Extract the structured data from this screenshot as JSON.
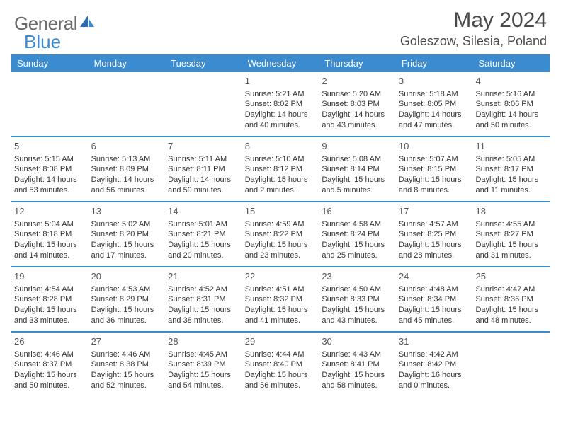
{
  "logo": {
    "word1": "General",
    "word2": "Blue"
  },
  "title": "May 2024",
  "location": "Goleszow, Silesia, Poland",
  "colors": {
    "accent": "#3b8bd0",
    "text": "#353535",
    "logo_gray": "#6a6a6a",
    "page_bg": "#ffffff"
  },
  "typography": {
    "title_fontsize": 30,
    "location_fontsize": 18,
    "dow_fontsize": 13,
    "daynum_fontsize": 13,
    "body_fontsize": 11
  },
  "dow": [
    "Sunday",
    "Monday",
    "Tuesday",
    "Wednesday",
    "Thursday",
    "Friday",
    "Saturday"
  ],
  "weeks": [
    [
      null,
      null,
      null,
      {
        "n": "1",
        "sr": "Sunrise: 5:21 AM",
        "ss": "Sunset: 8:02 PM",
        "dl": "Daylight: 14 hours and 40 minutes."
      },
      {
        "n": "2",
        "sr": "Sunrise: 5:20 AM",
        "ss": "Sunset: 8:03 PM",
        "dl": "Daylight: 14 hours and 43 minutes."
      },
      {
        "n": "3",
        "sr": "Sunrise: 5:18 AM",
        "ss": "Sunset: 8:05 PM",
        "dl": "Daylight: 14 hours and 47 minutes."
      },
      {
        "n": "4",
        "sr": "Sunrise: 5:16 AM",
        "ss": "Sunset: 8:06 PM",
        "dl": "Daylight: 14 hours and 50 minutes."
      }
    ],
    [
      {
        "n": "5",
        "sr": "Sunrise: 5:15 AM",
        "ss": "Sunset: 8:08 PM",
        "dl": "Daylight: 14 hours and 53 minutes."
      },
      {
        "n": "6",
        "sr": "Sunrise: 5:13 AM",
        "ss": "Sunset: 8:09 PM",
        "dl": "Daylight: 14 hours and 56 minutes."
      },
      {
        "n": "7",
        "sr": "Sunrise: 5:11 AM",
        "ss": "Sunset: 8:11 PM",
        "dl": "Daylight: 14 hours and 59 minutes."
      },
      {
        "n": "8",
        "sr": "Sunrise: 5:10 AM",
        "ss": "Sunset: 8:12 PM",
        "dl": "Daylight: 15 hours and 2 minutes."
      },
      {
        "n": "9",
        "sr": "Sunrise: 5:08 AM",
        "ss": "Sunset: 8:14 PM",
        "dl": "Daylight: 15 hours and 5 minutes."
      },
      {
        "n": "10",
        "sr": "Sunrise: 5:07 AM",
        "ss": "Sunset: 8:15 PM",
        "dl": "Daylight: 15 hours and 8 minutes."
      },
      {
        "n": "11",
        "sr": "Sunrise: 5:05 AM",
        "ss": "Sunset: 8:17 PM",
        "dl": "Daylight: 15 hours and 11 minutes."
      }
    ],
    [
      {
        "n": "12",
        "sr": "Sunrise: 5:04 AM",
        "ss": "Sunset: 8:18 PM",
        "dl": "Daylight: 15 hours and 14 minutes."
      },
      {
        "n": "13",
        "sr": "Sunrise: 5:02 AM",
        "ss": "Sunset: 8:20 PM",
        "dl": "Daylight: 15 hours and 17 minutes."
      },
      {
        "n": "14",
        "sr": "Sunrise: 5:01 AM",
        "ss": "Sunset: 8:21 PM",
        "dl": "Daylight: 15 hours and 20 minutes."
      },
      {
        "n": "15",
        "sr": "Sunrise: 4:59 AM",
        "ss": "Sunset: 8:22 PM",
        "dl": "Daylight: 15 hours and 23 minutes."
      },
      {
        "n": "16",
        "sr": "Sunrise: 4:58 AM",
        "ss": "Sunset: 8:24 PM",
        "dl": "Daylight: 15 hours and 25 minutes."
      },
      {
        "n": "17",
        "sr": "Sunrise: 4:57 AM",
        "ss": "Sunset: 8:25 PM",
        "dl": "Daylight: 15 hours and 28 minutes."
      },
      {
        "n": "18",
        "sr": "Sunrise: 4:55 AM",
        "ss": "Sunset: 8:27 PM",
        "dl": "Daylight: 15 hours and 31 minutes."
      }
    ],
    [
      {
        "n": "19",
        "sr": "Sunrise: 4:54 AM",
        "ss": "Sunset: 8:28 PM",
        "dl": "Daylight: 15 hours and 33 minutes."
      },
      {
        "n": "20",
        "sr": "Sunrise: 4:53 AM",
        "ss": "Sunset: 8:29 PM",
        "dl": "Daylight: 15 hours and 36 minutes."
      },
      {
        "n": "21",
        "sr": "Sunrise: 4:52 AM",
        "ss": "Sunset: 8:31 PM",
        "dl": "Daylight: 15 hours and 38 minutes."
      },
      {
        "n": "22",
        "sr": "Sunrise: 4:51 AM",
        "ss": "Sunset: 8:32 PM",
        "dl": "Daylight: 15 hours and 41 minutes."
      },
      {
        "n": "23",
        "sr": "Sunrise: 4:50 AM",
        "ss": "Sunset: 8:33 PM",
        "dl": "Daylight: 15 hours and 43 minutes."
      },
      {
        "n": "24",
        "sr": "Sunrise: 4:48 AM",
        "ss": "Sunset: 8:34 PM",
        "dl": "Daylight: 15 hours and 45 minutes."
      },
      {
        "n": "25",
        "sr": "Sunrise: 4:47 AM",
        "ss": "Sunset: 8:36 PM",
        "dl": "Daylight: 15 hours and 48 minutes."
      }
    ],
    [
      {
        "n": "26",
        "sr": "Sunrise: 4:46 AM",
        "ss": "Sunset: 8:37 PM",
        "dl": "Daylight: 15 hours and 50 minutes."
      },
      {
        "n": "27",
        "sr": "Sunrise: 4:46 AM",
        "ss": "Sunset: 8:38 PM",
        "dl": "Daylight: 15 hours and 52 minutes."
      },
      {
        "n": "28",
        "sr": "Sunrise: 4:45 AM",
        "ss": "Sunset: 8:39 PM",
        "dl": "Daylight: 15 hours and 54 minutes."
      },
      {
        "n": "29",
        "sr": "Sunrise: 4:44 AM",
        "ss": "Sunset: 8:40 PM",
        "dl": "Daylight: 15 hours and 56 minutes."
      },
      {
        "n": "30",
        "sr": "Sunrise: 4:43 AM",
        "ss": "Sunset: 8:41 PM",
        "dl": "Daylight: 15 hours and 58 minutes."
      },
      {
        "n": "31",
        "sr": "Sunrise: 4:42 AM",
        "ss": "Sunset: 8:42 PM",
        "dl": "Daylight: 16 hours and 0 minutes."
      },
      null
    ]
  ]
}
